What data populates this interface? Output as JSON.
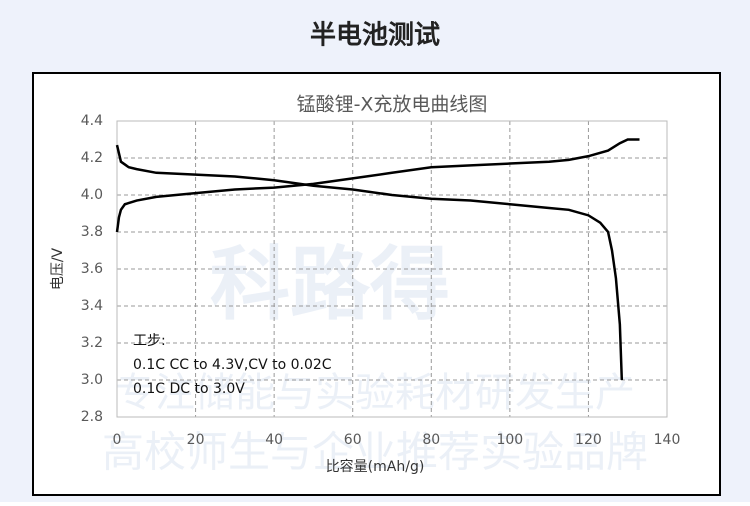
{
  "header": {
    "title": "半电池测试"
  },
  "watermark": [
    "科路得",
    "专注储能与实验耗材研发生产",
    "高校师生与企业推荐实验品牌"
  ],
  "chart_data": {
    "type": "line",
    "title": "锰酸锂-X充放电曲线图",
    "x_label": "比容量(mAh/g)",
    "y_label": "电压/V",
    "xlim": [
      0,
      140
    ],
    "xticks": [
      0,
      20,
      40,
      60,
      80,
      100,
      120,
      140
    ],
    "ylim": [
      2.8,
      4.4
    ],
    "yticks": [
      2.8,
      {
        "value": 3,
        "label": "3.0"
      },
      3.2,
      3.4,
      3.6,
      3.8,
      {
        "value": 4,
        "label": "4.0"
      },
      4.2,
      4.4
    ],
    "grid": true,
    "annotations": [
      "工步:",
      "0.1C CC to 4.3V,CV to 0.02C",
      "0.1C DC to 3.0V"
    ],
    "series": [
      {
        "color": "#000000",
        "x": [
          0,
          0.5,
          1,
          2,
          5,
          10,
          20,
          30,
          40,
          50,
          60,
          70,
          80,
          90,
          100,
          110,
          115,
          120,
          125,
          128,
          130,
          133
        ],
        "values": [
          3.8,
          3.88,
          3.92,
          3.95,
          3.97,
          3.99,
          4.01,
          4.03,
          4.04,
          4.06,
          4.09,
          4.12,
          4.15,
          4.16,
          4.17,
          4.18,
          4.19,
          4.21,
          4.24,
          4.28,
          4.3,
          4.3
        ]
      },
      {
        "color": "#000000",
        "x": [
          0,
          1,
          3,
          5,
          10,
          20,
          30,
          40,
          50,
          60,
          70,
          80,
          90,
          100,
          110,
          115,
          120,
          123,
          125,
          126,
          127,
          128,
          128.5
        ],
        "values": [
          4.27,
          4.18,
          4.15,
          4.14,
          4.12,
          4.11,
          4.1,
          4.08,
          4.05,
          4.03,
          4.0,
          3.98,
          3.97,
          3.95,
          3.93,
          3.92,
          3.89,
          3.85,
          3.8,
          3.7,
          3.55,
          3.3,
          3.0
        ]
      }
    ]
  }
}
